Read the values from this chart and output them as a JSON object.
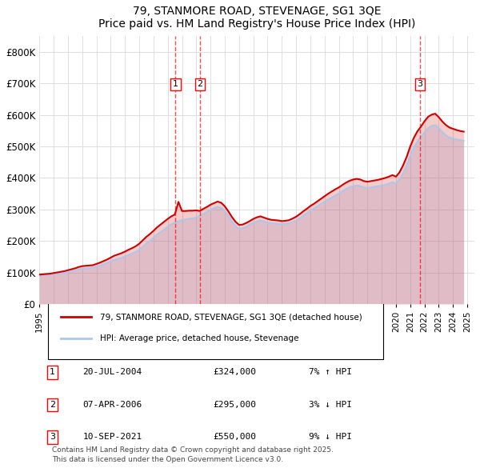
{
  "title": "79, STANMORE ROAD, STEVENAGE, SG1 3QE",
  "subtitle": "Price paid vs. HM Land Registry's House Price Index (HPI)",
  "ylabel": "",
  "background_color": "#ffffff",
  "grid_color": "#dddddd",
  "hpi_color": "#aec6e8",
  "price_color": "#cc0000",
  "ylim": [
    0,
    850000
  ],
  "yticks": [
    0,
    100000,
    200000,
    300000,
    400000,
    500000,
    600000,
    700000,
    800000
  ],
  "ytick_labels": [
    "£0",
    "£100K",
    "£200K",
    "£300K",
    "£400K",
    "£500K",
    "£600K",
    "£700K",
    "£800K"
  ],
  "transactions": [
    {
      "num": 1,
      "date": "20-JUL-2004",
      "price": "£324,000",
      "hpi_pct": "7% ↑ HPI",
      "year": 2004.55
    },
    {
      "num": 2,
      "date": "07-APR-2006",
      "price": "£295,000",
      "hpi_pct": "3% ↓ HPI",
      "year": 2006.27
    },
    {
      "num": 3,
      "date": "10-SEP-2021",
      "price": "£550,000",
      "hpi_pct": "9% ↓ HPI",
      "year": 2021.69
    }
  ],
  "legend_line1": "79, STANMORE ROAD, STEVENAGE, SG1 3QE (detached house)",
  "legend_line2": "HPI: Average price, detached house, Stevenage",
  "footnote": "Contains HM Land Registry data © Crown copyright and database right 2025.\nThis data is licensed under the Open Government Licence v3.0.",
  "hpi_years": [
    1995,
    1995.25,
    1995.5,
    1995.75,
    1996,
    1996.25,
    1996.5,
    1996.75,
    1997,
    1997.25,
    1997.5,
    1997.75,
    1998,
    1998.25,
    1998.5,
    1998.75,
    1999,
    1999.25,
    1999.5,
    1999.75,
    2000,
    2000.25,
    2000.5,
    2000.75,
    2001,
    2001.25,
    2001.5,
    2001.75,
    2002,
    2002.25,
    2002.5,
    2002.75,
    2003,
    2003.25,
    2003.5,
    2003.75,
    2004,
    2004.25,
    2004.5,
    2004.75,
    2005,
    2005.25,
    2005.5,
    2005.75,
    2006,
    2006.25,
    2006.5,
    2006.75,
    2007,
    2007.25,
    2007.5,
    2007.75,
    2008,
    2008.25,
    2008.5,
    2008.75,
    2009,
    2009.25,
    2009.5,
    2009.75,
    2010,
    2010.25,
    2010.5,
    2010.75,
    2011,
    2011.25,
    2011.5,
    2011.75,
    2012,
    2012.25,
    2012.5,
    2012.75,
    2013,
    2013.25,
    2013.5,
    2013.75,
    2014,
    2014.25,
    2014.5,
    2014.75,
    2015,
    2015.25,
    2015.5,
    2015.75,
    2016,
    2016.25,
    2016.5,
    2016.75,
    2017,
    2017.25,
    2017.5,
    2017.75,
    2018,
    2018.25,
    2018.5,
    2018.75,
    2019,
    2019.25,
    2019.5,
    2019.75,
    2020,
    2020.25,
    2020.5,
    2020.75,
    2021,
    2021.25,
    2021.5,
    2021.75,
    2022,
    2022.25,
    2022.5,
    2022.75,
    2023,
    2023.25,
    2023.5,
    2023.75,
    2024,
    2024.25,
    2024.5,
    2024.75
  ],
  "hpi_values": [
    90000,
    91000,
    92000,
    93000,
    95000,
    96000,
    97000,
    98000,
    100000,
    103000,
    106000,
    109000,
    112000,
    113000,
    114000,
    115000,
    118000,
    122000,
    126000,
    130000,
    135000,
    140000,
    143000,
    146000,
    150000,
    155000,
    160000,
    165000,
    172000,
    182000,
    192000,
    200000,
    210000,
    220000,
    228000,
    236000,
    245000,
    253000,
    258000,
    262000,
    266000,
    268000,
    270000,
    272000,
    274000,
    280000,
    286000,
    292000,
    298000,
    304000,
    308000,
    305000,
    295000,
    280000,
    262000,
    248000,
    238000,
    240000,
    245000,
    252000,
    258000,
    262000,
    265000,
    262000,
    258000,
    256000,
    255000,
    254000,
    253000,
    254000,
    256000,
    260000,
    265000,
    272000,
    280000,
    288000,
    296000,
    303000,
    310000,
    318000,
    325000,
    332000,
    338000,
    344000,
    350000,
    358000,
    365000,
    370000,
    374000,
    376000,
    374000,
    370000,
    368000,
    370000,
    372000,
    374000,
    376000,
    378000,
    382000,
    386000,
    382000,
    395000,
    415000,
    440000,
    470000,
    495000,
    515000,
    530000,
    545000,
    558000,
    565000,
    568000,
    558000,
    545000,
    535000,
    528000,
    525000,
    522000,
    520000,
    518000
  ],
  "price_years": [
    1995,
    1995.25,
    1995.5,
    1995.75,
    1996,
    1996.25,
    1996.5,
    1996.75,
    1997,
    1997.25,
    1997.5,
    1997.75,
    1998,
    1998.25,
    1998.5,
    1998.75,
    1999,
    1999.25,
    1999.5,
    1999.75,
    2000,
    2000.25,
    2000.5,
    2000.75,
    2001,
    2001.25,
    2001.5,
    2001.75,
    2002,
    2002.25,
    2002.5,
    2002.75,
    2003,
    2003.25,
    2003.5,
    2003.75,
    2004,
    2004.25,
    2004.5,
    2004.75,
    2005,
    2005.25,
    2005.5,
    2005.75,
    2006,
    2006.25,
    2006.5,
    2006.75,
    2007,
    2007.25,
    2007.5,
    2007.75,
    2008,
    2008.25,
    2008.5,
    2008.75,
    2009,
    2009.25,
    2009.5,
    2009.75,
    2010,
    2010.25,
    2010.5,
    2010.75,
    2011,
    2011.25,
    2011.5,
    2011.75,
    2012,
    2012.25,
    2012.5,
    2012.75,
    2013,
    2013.25,
    2013.5,
    2013.75,
    2014,
    2014.25,
    2014.5,
    2014.75,
    2015,
    2015.25,
    2015.5,
    2015.75,
    2016,
    2016.25,
    2016.5,
    2016.75,
    2017,
    2017.25,
    2017.5,
    2017.75,
    2018,
    2018.25,
    2018.5,
    2018.75,
    2019,
    2019.25,
    2019.5,
    2019.75,
    2020,
    2020.25,
    2020.5,
    2020.75,
    2021,
    2021.25,
    2021.5,
    2021.75,
    2022,
    2022.25,
    2022.5,
    2022.75,
    2023,
    2023.25,
    2023.5,
    2023.75,
    2024,
    2024.25,
    2024.5,
    2024.75
  ],
  "price_values": [
    93000,
    94000,
    95000,
    96000,
    98000,
    100000,
    102000,
    104000,
    107000,
    110000,
    113000,
    117000,
    120000,
    121000,
    122000,
    123000,
    127000,
    131000,
    136000,
    141000,
    147000,
    153000,
    157000,
    161000,
    166000,
    172000,
    177000,
    183000,
    191000,
    202000,
    213000,
    222000,
    232000,
    243000,
    252000,
    261000,
    270000,
    278000,
    284000,
    324000,
    295000,
    295000,
    296000,
    296000,
    297000,
    295000,
    302000,
    308000,
    315000,
    320000,
    325000,
    321000,
    310000,
    294000,
    276000,
    261000,
    251000,
    252000,
    257000,
    263000,
    270000,
    275000,
    278000,
    274000,
    270000,
    267000,
    266000,
    265000,
    263000,
    264000,
    266000,
    271000,
    277000,
    285000,
    294000,
    302000,
    311000,
    318000,
    326000,
    334000,
    342000,
    350000,
    357000,
    364000,
    370000,
    378000,
    385000,
    391000,
    395000,
    397000,
    395000,
    390000,
    388000,
    390000,
    392000,
    394000,
    397000,
    400000,
    404000,
    409000,
    404000,
    418000,
    440000,
    467000,
    500000,
    527000,
    548000,
    563000,
    580000,
    594000,
    601000,
    604000,
    593000,
    579000,
    568000,
    560000,
    556000,
    552000,
    549000,
    547000
  ],
  "xlim": [
    1995,
    2025.5
  ],
  "xtick_years": [
    1995,
    1996,
    1997,
    1998,
    1999,
    2000,
    2001,
    2002,
    2003,
    2004,
    2005,
    2006,
    2007,
    2008,
    2009,
    2010,
    2011,
    2012,
    2013,
    2014,
    2015,
    2016,
    2017,
    2018,
    2019,
    2020,
    2021,
    2022,
    2023,
    2024,
    2025
  ]
}
